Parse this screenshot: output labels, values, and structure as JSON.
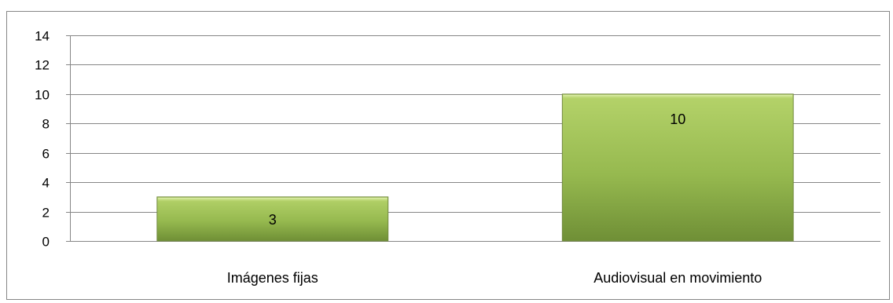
{
  "chart_data": {
    "type": "bar",
    "categories": [
      "Imágenes fijas",
      "Audiovisual en movimiento"
    ],
    "values": [
      3,
      10
    ],
    "ylim": [
      0,
      14
    ],
    "yticks": [
      0,
      2,
      4,
      6,
      8,
      10,
      12,
      14
    ],
    "grid": true,
    "legend": "none",
    "bar_color": "#9BBB59",
    "data_labels": [
      "3",
      "10"
    ]
  }
}
